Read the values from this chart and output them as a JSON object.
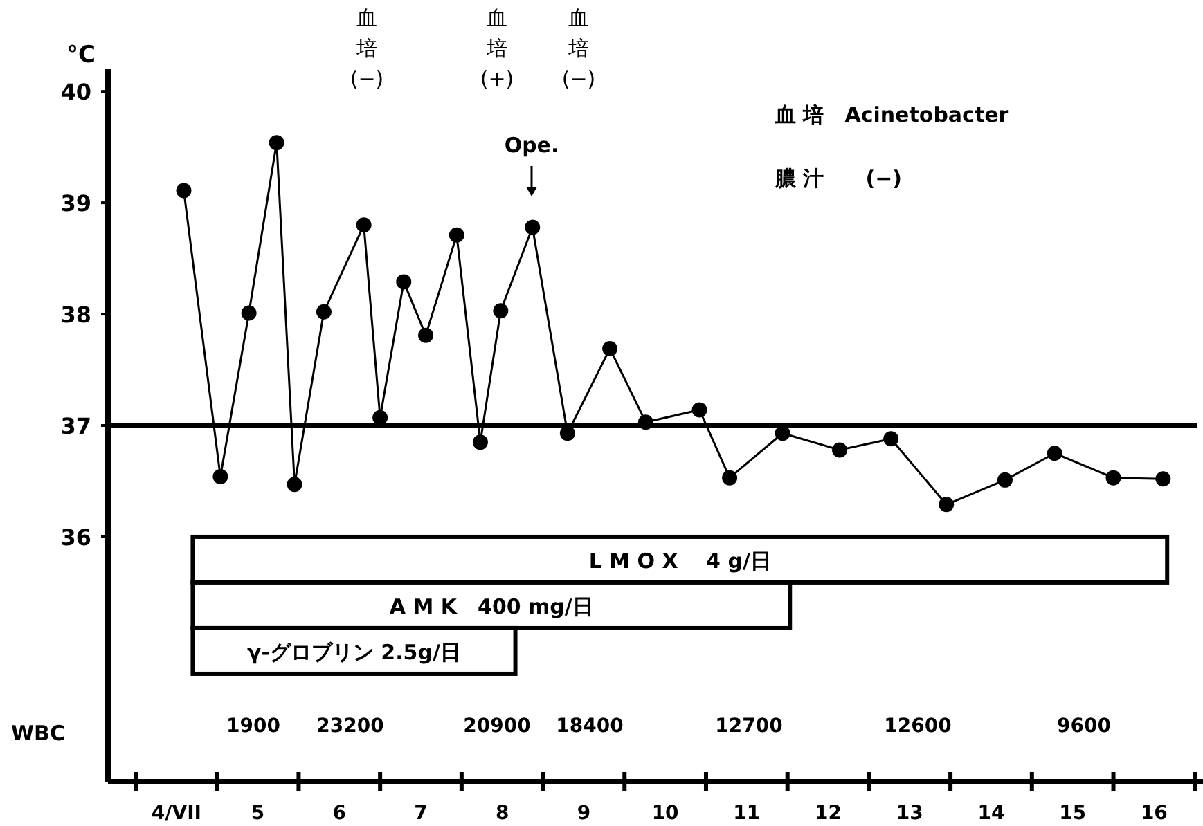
{
  "chart_data": {
    "type": "line",
    "ylabel": "°C",
    "x": [
      4.09,
      4.54,
      4.89,
      5.23,
      5.45,
      5.81,
      6.3,
      6.5,
      6.79,
      7.06,
      7.44,
      7.73,
      7.98,
      8.37,
      8.8,
      9.32,
      9.76,
      10.42,
      10.79,
      11.44,
      12.14,
      12.77,
      13.45,
      14.17,
      14.78,
      15.5,
      16.11
    ],
    "series": [
      {
        "color": "#000000",
        "values": [
          39.11,
          36.54,
          38.01,
          39.54,
          36.47,
          38.02,
          38.8,
          37.07,
          38.29,
          37.81,
          38.71,
          36.85,
          38.03,
          38.78,
          36.93,
          37.69,
          37.03,
          37.14,
          36.53,
          36.93,
          36.78,
          36.88,
          36.29,
          36.51,
          36.75,
          36.53,
          36.52
        ]
      }
    ],
    "xlim": [
      3.16,
      16.6
    ],
    "ylim": [
      33.8,
      40.2
    ],
    "yticks": [
      36,
      37,
      38,
      39,
      40
    ],
    "xticks": [
      {
        "value": 3.5,
        "label": null
      },
      {
        "value": 4,
        "label": "4/VII"
      },
      {
        "value": 4.5,
        "label": null
      },
      {
        "value": 5,
        "label": "5"
      },
      {
        "value": 5.5,
        "label": null
      },
      {
        "value": 6,
        "label": "6"
      },
      {
        "value": 6.5,
        "label": null
      },
      {
        "value": 7,
        "label": "7"
      },
      {
        "value": 7.5,
        "label": null
      },
      {
        "value": 8,
        "label": "8"
      },
      {
        "value": 8.5,
        "label": null
      },
      {
        "value": 9,
        "label": "9"
      },
      {
        "value": 9.5,
        "label": null
      },
      {
        "value": 10,
        "label": "10"
      },
      {
        "value": 10.5,
        "label": null
      },
      {
        "value": 11,
        "label": "11"
      },
      {
        "value": 11.5,
        "label": null
      },
      {
        "value": 12,
        "label": "12"
      },
      {
        "value": 12.5,
        "label": null
      },
      {
        "value": 13,
        "label": "13"
      },
      {
        "value": 13.5,
        "label": null
      },
      {
        "value": 14,
        "label": "14"
      },
      {
        "value": 14.5,
        "label": null
      },
      {
        "value": 15,
        "label": "15"
      },
      {
        "value": 15.5,
        "label": null
      },
      {
        "value": 16,
        "label": "16"
      },
      {
        "value": 16.5,
        "label": null
      }
    ],
    "marker": "circle",
    "line_style": "solid",
    "grid": false,
    "ref_lines": [
      {
        "axis": "y",
        "value": 37,
        "color": "#000000"
      }
    ],
    "bands": [
      {
        "axis": "x",
        "from": 4.2,
        "to": 16.16,
        "label": "L M O X　 4 g/日",
        "color": "#ffffff"
      },
      {
        "axis": "x",
        "from": 4.2,
        "to": 11.53,
        "label": "A M K　400 mg/日",
        "color": "#ffffff"
      },
      {
        "axis": "x",
        "from": 4.2,
        "to": 8.16,
        "label": "γ-グロブリン 2.5g/日",
        "color": "#ffffff"
      }
    ],
    "annotations": [
      "血培(−)",
      "血培(+)",
      "血培(−)",
      "Ope.",
      "血 培　Acinetobacter",
      "膿 汁　　(−)",
      "WBC",
      "1900",
      "23200",
      "20900",
      "18400",
      "12700",
      "12600",
      "9600"
    ]
  }
}
